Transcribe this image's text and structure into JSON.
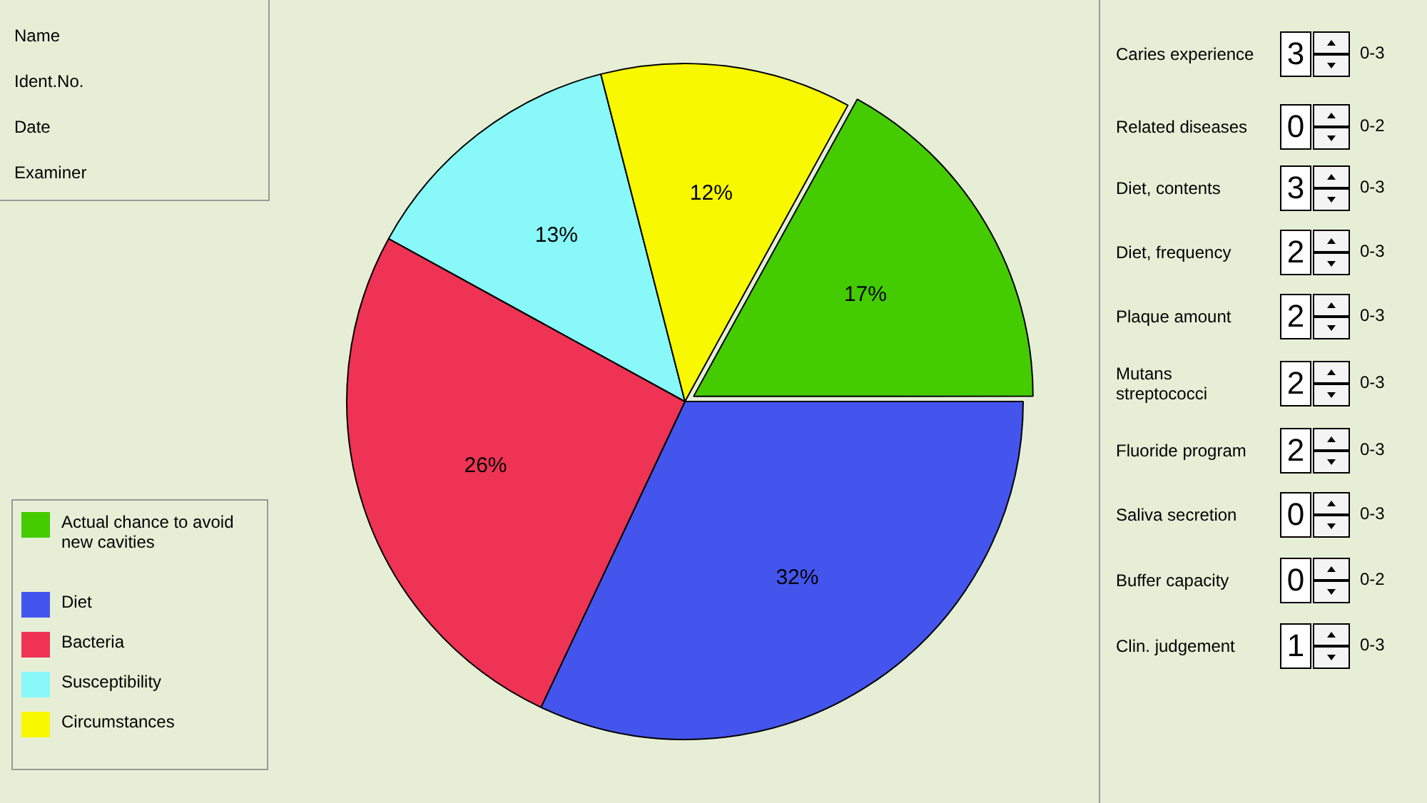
{
  "chart_data": [
    {
      "type": "pie",
      "categories": [
        "Actual chance to avoid new cavities",
        "Diet",
        "Bacteria",
        "Susceptibility",
        "Circumstances"
      ],
      "values": [
        17,
        32,
        26,
        13,
        12
      ],
      "colors": [
        "#44cc00",
        "#4455ee",
        "#ee3355",
        "#88f8f8",
        "#f8f800"
      ],
      "value_labels": [
        "17%",
        "32%",
        "26%",
        "13%",
        "12%"
      ],
      "legend": "bottom left"
    },
    {
      "type": "other",
      "annotations": [
        "Name",
        "Ident.No.",
        "Date",
        "Examiner"
      ]
    },
    {
      "type": "other",
      "categories": [
        "Caries experience",
        "Related diseases",
        "Diet, contents",
        "Diet, frequency",
        "Plaque amount",
        "Mutans streptococci",
        "Fluoride program",
        "Saliva secretion",
        "Buffer capacity",
        "Clin. judgement"
      ],
      "value_labels": [
        "3",
        "0",
        "3",
        "2",
        "2",
        "2",
        "2",
        "0",
        "0",
        "1"
      ],
      "annotations": [
        "0-3",
        "0-2",
        "0-3",
        "0-3",
        "0-3",
        "0-3",
        "0-3",
        "0-3",
        "0-2",
        "0-3"
      ]
    }
  ]
}
